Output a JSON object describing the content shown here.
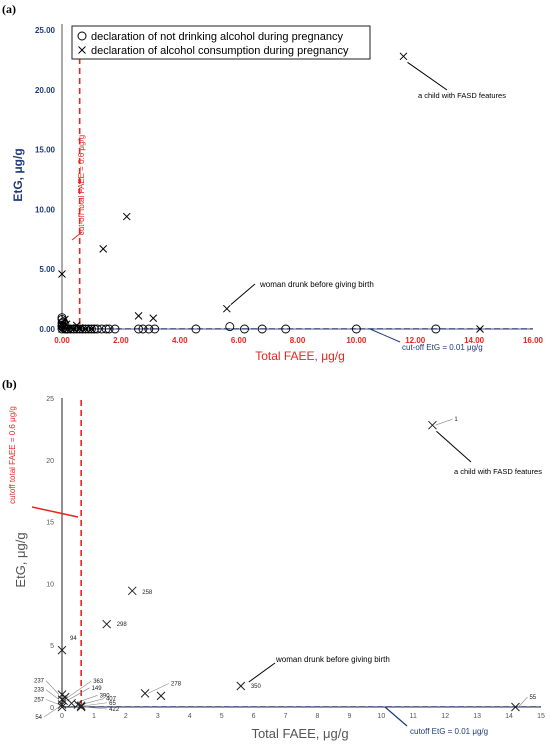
{
  "chart_data": [
    {
      "type": "scatter",
      "panel_label": "(a)",
      "xlabel": "Total FAEE, μg/g",
      "ylabel": "EtG, μg/g",
      "xlim": [
        0,
        16
      ],
      "ylim": [
        0,
        25
      ],
      "x_ticks": [
        "0.00",
        "2.00",
        "4.00",
        "6.00",
        "8.00",
        "10.00",
        "12.00",
        "14.00",
        "16.00"
      ],
      "y_ticks": [
        "0.00",
        "5.00",
        "10.00",
        "15.00",
        "20.00",
        "25.00"
      ],
      "colors": {
        "x_axis_text": "#e8251f",
        "y_axis_text": "#1f3a7a",
        "cutoff_faee": "#e8251f",
        "cutoff_etg": "#1f3a7a"
      },
      "legend": {
        "position": "top",
        "entries": [
          {
            "marker": "circle",
            "label": "declaration of not drinking alcohol during pregnancy"
          },
          {
            "marker": "cross",
            "label": "declaration of alcohol consumption during pregnancy"
          }
        ]
      },
      "cutoffs": {
        "faee": {
          "value": 0.6,
          "label": "cut-off total FAEE = 0.6 μg/g"
        },
        "etg": {
          "value": 0.01,
          "label": "cut-off EtG = 0.01 μg/g"
        }
      },
      "series": [
        {
          "name": "declaration of not drinking alcohol during pregnancy",
          "marker": "circle",
          "points": [
            [
              0.0,
              0.0
            ],
            [
              0.0,
              0.3
            ],
            [
              0.0,
              0.5
            ],
            [
              0.0,
              0.8
            ],
            [
              0.0,
              0.95
            ],
            [
              0.0,
              0.2
            ],
            [
              0.05,
              0.1
            ],
            [
              0.05,
              0.6
            ],
            [
              0.1,
              0.0
            ],
            [
              0.1,
              0.4
            ],
            [
              0.15,
              0.0
            ],
            [
              0.2,
              0.0
            ],
            [
              0.3,
              0.0
            ],
            [
              0.4,
              0.0
            ],
            [
              0.5,
              0.0
            ],
            [
              0.6,
              0.0
            ],
            [
              0.7,
              0.0
            ],
            [
              0.8,
              0.0
            ],
            [
              0.9,
              0.0
            ],
            [
              1.0,
              0.0
            ],
            [
              1.1,
              0.0
            ],
            [
              1.2,
              0.0
            ],
            [
              1.35,
              0.0
            ],
            [
              1.5,
              0.0
            ],
            [
              1.6,
              0.0
            ],
            [
              1.8,
              0.0
            ],
            [
              2.6,
              0.0
            ],
            [
              2.75,
              0.0
            ],
            [
              2.95,
              0.0
            ],
            [
              3.15,
              0.0
            ],
            [
              4.55,
              0.0
            ],
            [
              5.7,
              0.2
            ],
            [
              6.2,
              0.0
            ],
            [
              6.8,
              0.0
            ],
            [
              7.6,
              0.0
            ],
            [
              10.0,
              0.0
            ],
            [
              12.7,
              0.0
            ]
          ]
        },
        {
          "name": "declaration of alcohol consumption during pregnancy",
          "marker": "cross",
          "points": [
            [
              0.0,
              4.6
            ],
            [
              0.0,
              0.3
            ],
            [
              0.0,
              0.0
            ],
            [
              0.0,
              0.5
            ],
            [
              0.05,
              0.2
            ],
            [
              0.1,
              0.8
            ],
            [
              0.15,
              0.4
            ],
            [
              0.2,
              0.0
            ],
            [
              0.3,
              0.1
            ],
            [
              0.4,
              0.0
            ],
            [
              0.5,
              0.3
            ],
            [
              0.6,
              0.0
            ],
            [
              0.6,
              0.1
            ],
            [
              0.8,
              0.0
            ],
            [
              1.0,
              0.0
            ],
            [
              1.4,
              6.7
            ],
            [
              2.2,
              9.4
            ],
            [
              2.6,
              1.1
            ],
            [
              3.1,
              0.9
            ],
            [
              5.6,
              1.7
            ],
            [
              11.6,
              22.8
            ],
            [
              14.2,
              0.0
            ]
          ]
        }
      ],
      "annotations": [
        {
          "text": "a child with FASD features",
          "x": 11.6,
          "y": 22.8
        },
        {
          "text": "woman drunk before giving birth",
          "x": 5.6,
          "y": 1.7
        }
      ]
    },
    {
      "type": "scatter",
      "panel_label": "(b)",
      "xlabel": "Total FAEE, μg/g",
      "ylabel": "EtG, μg/g",
      "xlim": [
        0,
        15
      ],
      "ylim": [
        0,
        25
      ],
      "x_ticks": [
        "0",
        "1",
        "2",
        "3",
        "4",
        "5",
        "6",
        "7",
        "8",
        "9",
        "10",
        "11",
        "12",
        "13",
        "14",
        "15"
      ],
      "y_ticks": [
        "0",
        "5",
        "10",
        "15",
        "20",
        "25"
      ],
      "cutoffs": {
        "faee": {
          "value": 0.6,
          "label": "cutoff total FAEE = 0.6 μg/g"
        },
        "etg": {
          "value": 0.01,
          "label": "cutoff EtG = 0.01 μg/g"
        }
      },
      "series": [
        {
          "name": "declaration of alcohol consumption during pregnancy",
          "marker": "cross",
          "points": [
            {
              "id": "1",
              "x": 11.6,
              "y": 22.8
            },
            {
              "id": "258",
              "x": 2.2,
              "y": 9.4
            },
            {
              "id": "298",
              "x": 1.4,
              "y": 6.7
            },
            {
              "id": "94",
              "x": 0.0,
              "y": 4.6
            },
            {
              "id": "363",
              "x": 0.1,
              "y": 0.8
            },
            {
              "id": "149",
              "x": 0.05,
              "y": 0.5
            },
            {
              "id": "390",
              "x": 0.3,
              "y": 0.3
            },
            {
              "id": "407",
              "x": 0.5,
              "y": 0.2
            },
            {
              "id": "65",
              "x": 0.6,
              "y": 0.1
            },
            {
              "id": "422",
              "x": 0.6,
              "y": 0.0
            },
            {
              "id": "237",
              "x": 0.0,
              "y": 1.0
            },
            {
              "id": "233",
              "x": 0.0,
              "y": 0.6
            },
            {
              "id": "257",
              "x": 0.0,
              "y": 0.2
            },
            {
              "id": "54",
              "x": 0.0,
              "y": 0.0
            },
            {
              "id": "278",
              "x": 2.6,
              "y": 1.1
            },
            {
              "id": "",
              "x": 3.1,
              "y": 0.9
            },
            {
              "id": "350",
              "x": 5.6,
              "y": 1.7
            },
            {
              "id": "55",
              "x": 14.2,
              "y": 0.0
            }
          ]
        }
      ],
      "annotations": [
        {
          "text": "a child with FASD features",
          "x": 11.6,
          "y": 22.8
        },
        {
          "text": "woman drunk before giving birth",
          "x": 5.6,
          "y": 1.7
        }
      ]
    }
  ]
}
